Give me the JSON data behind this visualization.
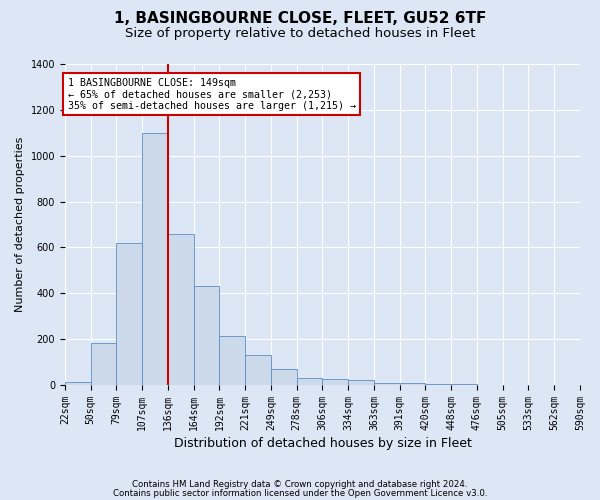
{
  "title": "1, BASINGBOURNE CLOSE, FLEET, GU52 6TF",
  "subtitle": "Size of property relative to detached houses in Fleet",
  "xlabel": "Distribution of detached houses by size in Fleet",
  "ylabel": "Number of detached properties",
  "footer_line1": "Contains HM Land Registry data © Crown copyright and database right 2024.",
  "footer_line2": "Contains public sector information licensed under the Open Government Licence v3.0.",
  "bin_labels": [
    "22sqm",
    "50sqm",
    "79sqm",
    "107sqm",
    "136sqm",
    "164sqm",
    "192sqm",
    "221sqm",
    "249sqm",
    "278sqm",
    "306sqm",
    "334sqm",
    "363sqm",
    "391sqm",
    "420sqm",
    "448sqm",
    "476sqm",
    "505sqm",
    "533sqm",
    "562sqm",
    "590sqm"
  ],
  "bar_values": [
    12,
    185,
    620,
    1100,
    660,
    430,
    215,
    130,
    70,
    30,
    25,
    20,
    10,
    8,
    4,
    3,
    2,
    1,
    1,
    1
  ],
  "bar_color": "#ccd9ea",
  "bar_edge_color": "#5b8ec4",
  "red_line_x": 4,
  "red_line_color": "#cc0000",
  "annotation_text": "1 BASINGBOURNE CLOSE: 149sqm\n← 65% of detached houses are smaller (2,253)\n35% of semi-detached houses are larger (1,215) →",
  "annotation_box_edgecolor": "#cc0000",
  "ylim_max": 1400,
  "yticks": [
    0,
    200,
    400,
    600,
    800,
    1000,
    1200,
    1400
  ],
  "bg_color": "#dce6f5",
  "grid_color": "#ffffff",
  "title_fontsize": 11,
  "subtitle_fontsize": 9.5,
  "tick_fontsize": 7,
  "ylabel_fontsize": 8,
  "xlabel_fontsize": 9
}
